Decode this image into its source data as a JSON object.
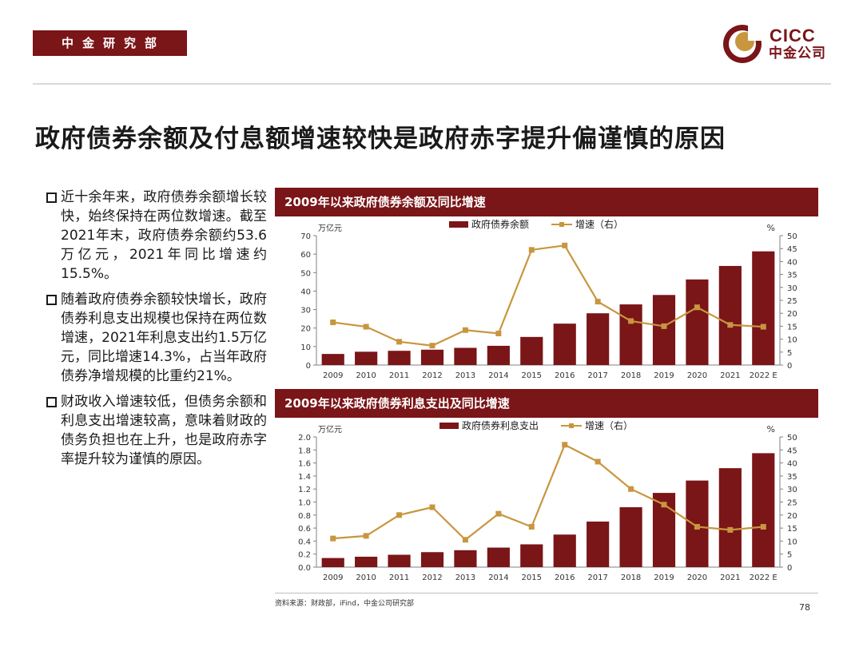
{
  "header": {
    "department": "中金研究部",
    "logo": {
      "latin": "CICC",
      "chinese": "中金公司"
    }
  },
  "title": "政府债券余额及付息额增速较快是政府赤字提升偏谨慎的原因",
  "bullets": [
    "近十余年来，政府债券余额增长较快，始终保持在两位数增速。截至2021年末，政府债券余额约53.6万亿元，2021年同比增速约15.5%。",
    "随着政府债券余额较快增长，政府债券利息支出规模也保持在两位数增速，2021年利息支出约1.5万亿元，同比增速14.3%，占当年政府债券净增规模的比重约21%。",
    "财政收入增速较低，但债务余额和利息支出增速较高，意味着财政的债务负担也在上升，也是政府赤字率提升较为谨慎的原因。"
  ],
  "chart_data": [
    {
      "type": "bar",
      "title": "2009年以来政府债券余额及同比增速",
      "categories": [
        "2009",
        "2010",
        "2011",
        "2012",
        "2013",
        "2014",
        "2015",
        "2016",
        "2017",
        "2018",
        "2019",
        "2020",
        "2021",
        "2022 E"
      ],
      "ylabel_left": "万亿元",
      "ylabel_right": "%",
      "ylim_left": [
        0,
        70
      ],
      "yticks_left": [
        "0",
        "10",
        "20",
        "30",
        "40",
        "50",
        "60",
        "70"
      ],
      "ylim_right": [
        0,
        50
      ],
      "yticks_right": [
        "0",
        "5",
        "10",
        "15",
        "20",
        "25",
        "30",
        "35",
        "40",
        "45",
        "50"
      ],
      "legend": "top-center",
      "grid": false,
      "series": [
        {
          "name": "政府债券余额",
          "kind": "bar",
          "axis": "left",
          "color": "#7a1518",
          "values": [
            6.0,
            7.2,
            7.7,
            8.3,
            9.3,
            10.4,
            15.2,
            22.4,
            28.0,
            32.8,
            37.9,
            46.3,
            53.6,
            61.5
          ]
        },
        {
          "name": "增速（右）",
          "kind": "line",
          "axis": "right",
          "color": "#c8963e",
          "values": [
            16.5,
            14.8,
            9.0,
            7.5,
            13.5,
            12.2,
            44.5,
            46.2,
            24.5,
            17.0,
            15.0,
            22.3,
            15.5,
            14.8
          ]
        }
      ]
    },
    {
      "type": "bar",
      "title": "2009年以来政府债券利息支出及同比增速",
      "categories": [
        "2009",
        "2010",
        "2011",
        "2012",
        "2013",
        "2014",
        "2015",
        "2016",
        "2017",
        "2018",
        "2019",
        "2020",
        "2021",
        "2022 E"
      ],
      "ylabel_left": "万亿元",
      "ylabel_right": "%",
      "ylim_left": [
        0,
        2.0
      ],
      "yticks_left": [
        "0.0",
        "0.2",
        "0.4",
        "0.6",
        "0.8",
        "1.0",
        "1.2",
        "1.4",
        "1.6",
        "1.8",
        "2.0"
      ],
      "ylim_right": [
        0,
        50
      ],
      "yticks_right": [
        "0",
        "5",
        "10",
        "15",
        "20",
        "25",
        "30",
        "35",
        "40",
        "45",
        "50"
      ],
      "legend": "top-center",
      "grid": false,
      "series": [
        {
          "name": "政府债券利息支出",
          "kind": "bar",
          "axis": "left",
          "color": "#7a1518",
          "values": [
            0.14,
            0.16,
            0.19,
            0.23,
            0.26,
            0.3,
            0.35,
            0.5,
            0.7,
            0.92,
            1.14,
            1.33,
            1.52,
            1.75
          ]
        },
        {
          "name": "增速（右）",
          "kind": "line",
          "axis": "right",
          "color": "#c8963e",
          "values": [
            11.0,
            12.0,
            20.0,
            23.0,
            10.5,
            20.5,
            15.5,
            47.0,
            40.5,
            30.0,
            24.0,
            15.5,
            14.3,
            15.5
          ]
        }
      ]
    }
  ],
  "source": "资料来源：财政部，iFind，中金公司研究部",
  "page_number": "78"
}
